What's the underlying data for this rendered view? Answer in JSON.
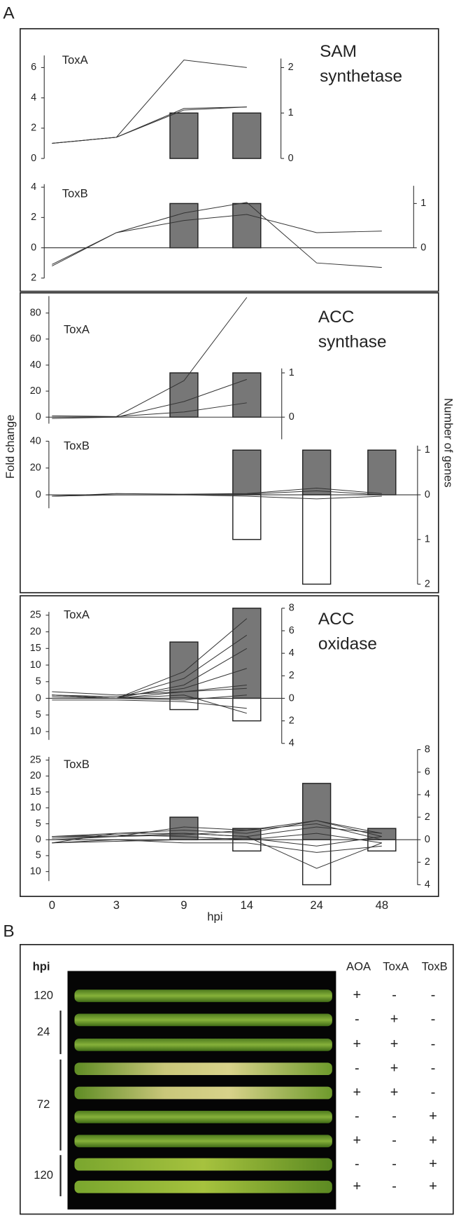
{
  "figure": {
    "panel_a": "A",
    "y_label": "Fold change",
    "y2_label": "Number of genes"
  },
  "chart_data": [
    {
      "type": "bar_line",
      "group": "SAM synthetase",
      "title": "ToxA",
      "zero_line": false,
      "ylim": [
        0,
        6.8
      ],
      "yticks": [
        0,
        2,
        4,
        6
      ],
      "y2lim": [
        0,
        2.2
      ],
      "y2ticks": [
        0,
        1,
        2
      ],
      "series": [
        {
          "type": "bar",
          "axis": "y2",
          "color": "#777777",
          "values": [
            null,
            null,
            1,
            1,
            null,
            null
          ]
        },
        {
          "type": "line",
          "color": "#333333",
          "values": [
            1.0,
            1.4,
            6.5,
            6.0,
            null,
            null
          ]
        },
        {
          "type": "line",
          "color": "#333333",
          "values": [
            1.0,
            1.4,
            3.3,
            3.4,
            null,
            null
          ]
        },
        {
          "type": "line",
          "color": "#333333",
          "values": [
            1.0,
            1.4,
            3.2,
            3.4,
            null,
            null
          ]
        }
      ]
    },
    {
      "type": "bar_line",
      "title": "ToxB",
      "zero_line": true,
      "ylim": [
        -2,
        4.2
      ],
      "yticks": [
        4,
        2,
        0,
        {
          "value": -2,
          "label": "2"
        }
      ],
      "y2lim": [
        0,
        1.4
      ],
      "y2ticks": [
        0,
        1
      ],
      "series": [
        {
          "type": "bar",
          "axis": "y2",
          "color": "#777777",
          "values": [
            null,
            null,
            1,
            1,
            null,
            null
          ]
        },
        {
          "type": "line",
          "color": "#333333",
          "values": [
            -1.1,
            1.0,
            2.3,
            3.0,
            -1.0,
            -1.3
          ]
        },
        {
          "type": "line",
          "color": "#333333",
          "values": [
            -1.2,
            1.0,
            1.8,
            2.2,
            1.0,
            1.1
          ]
        }
      ]
    },
    {
      "type": "bar_line",
      "group": "ACC synthase",
      "title": "ToxA",
      "zero_line": true,
      "ylim": [
        -5,
        93
      ],
      "yticks": [
        0,
        20,
        40,
        60,
        80
      ],
      "y2lim": [
        -0.5,
        1.1
      ],
      "y2ticks": [
        0,
        1
      ],
      "series": [
        {
          "type": "bar",
          "axis": "y2",
          "color": "#777777",
          "values": [
            null,
            null,
            1,
            1,
            null,
            null
          ]
        },
        {
          "type": "line",
          "color": "#333333",
          "values": [
            1,
            0.5,
            28,
            92,
            null,
            null
          ]
        },
        {
          "type": "line",
          "color": "#333333",
          "values": [
            -1,
            0,
            12,
            29,
            null,
            null
          ]
        },
        {
          "type": "line",
          "color": "#333333",
          "values": [
            0,
            0.5,
            4,
            11,
            null,
            null
          ]
        }
      ]
    },
    {
      "type": "bar_line",
      "title": "ToxB",
      "zero_line": true,
      "ylim": [
        -10,
        40
      ],
      "yticks": [
        40,
        20,
        0
      ],
      "y2lim": [
        -2,
        1.1
      ],
      "y2ticks": [
        1,
        0,
        {
          "value": -1,
          "label": "1"
        },
        {
          "value": -2,
          "label": "2"
        }
      ],
      "series": [
        {
          "type": "bar",
          "axis": "y2",
          "color": "#777777",
          "values": [
            null,
            null,
            null,
            1,
            1,
            1
          ]
        },
        {
          "type": "bar",
          "axis": "y2",
          "color": "#ffffff",
          "values": [
            null,
            null,
            null,
            -1,
            -2,
            null
          ]
        },
        {
          "type": "line",
          "color": "#333333",
          "values": [
            -1,
            1,
            0.5,
            1,
            5,
            1
          ]
        },
        {
          "type": "line",
          "color": "#333333",
          "values": [
            -1,
            0,
            0,
            0.5,
            3,
            0
          ]
        },
        {
          "type": "line",
          "color": "#333333",
          "values": [
            -1,
            0,
            0,
            -1,
            -3,
            -1
          ]
        }
      ]
    },
    {
      "type": "bar_line",
      "group": "ACC oxidase",
      "title": "ToxA",
      "zero_line": true,
      "ylim": [
        -12.5,
        26
      ],
      "yticks": [
        25,
        20,
        15,
        10,
        5,
        0,
        {
          "value": -5,
          "label": "5"
        },
        {
          "value": -10,
          "label": "10"
        }
      ],
      "y2lim": [
        -4,
        8
      ],
      "y2ticks": [
        8,
        6,
        4,
        2,
        0,
        {
          "value": -2,
          "label": "2"
        },
        {
          "value": -4,
          "label": "4"
        }
      ],
      "series": [
        {
          "type": "bar",
          "axis": "y2",
          "color": "#777777",
          "values": [
            null,
            null,
            5,
            8,
            null,
            null
          ]
        },
        {
          "type": "bar",
          "axis": "y2",
          "color": "#ffffff",
          "values": [
            null,
            null,
            -1,
            -2,
            null,
            null
          ]
        },
        {
          "type": "line",
          "color": "#333333",
          "values": [
            1,
            0,
            8,
            24,
            null,
            null
          ]
        },
        {
          "type": "line",
          "color": "#333333",
          "values": [
            1,
            0,
            6,
            19,
            null,
            null
          ]
        },
        {
          "type": "line",
          "color": "#333333",
          "values": [
            1,
            0,
            4,
            15,
            null,
            null
          ]
        },
        {
          "type": "line",
          "color": "#333333",
          "values": [
            1,
            0.5,
            3,
            9,
            null,
            null
          ]
        },
        {
          "type": "line",
          "color": "#333333",
          "values": [
            0.5,
            0,
            2,
            4,
            null,
            null
          ]
        },
        {
          "type": "line",
          "color": "#333333",
          "values": [
            2,
            1,
            2,
            3,
            null,
            null
          ]
        },
        {
          "type": "line",
          "color": "#333333",
          "values": [
            0,
            0,
            -0.5,
            1,
            null,
            null
          ]
        },
        {
          "type": "line",
          "color": "#333333",
          "values": [
            -0.5,
            -0.5,
            -1,
            -3,
            null,
            null
          ]
        },
        {
          "type": "line",
          "color": "#333333",
          "values": [
            0,
            0,
            1,
            -4.5,
            null,
            null
          ]
        }
      ]
    },
    {
      "type": "bar_line",
      "title": "ToxB",
      "zero_line": true,
      "x_label": "hpi",
      "categories": [
        "0",
        "3",
        "9",
        "14",
        "24",
        "48"
      ],
      "ylim": [
        -13,
        26
      ],
      "yticks": [
        25,
        20,
        15,
        10,
        5,
        0,
        {
          "value": -5,
          "label": "5"
        },
        {
          "value": -10,
          "label": "10"
        }
      ],
      "y2lim": [
        -4,
        8
      ],
      "y2ticks": [
        8,
        6,
        4,
        2,
        0,
        {
          "value": -2,
          "label": "2"
        },
        {
          "value": -4,
          "label": "4"
        }
      ],
      "series": [
        {
          "type": "bar",
          "axis": "y2",
          "color": "#777777",
          "values": [
            null,
            null,
            2,
            1,
            5,
            1
          ]
        },
        {
          "type": "bar",
          "axis": "y2",
          "color": "#ffffff",
          "values": [
            null,
            null,
            null,
            -1,
            -4,
            -1
          ]
        },
        {
          "type": "line",
          "color": "#333333",
          "values": [
            1,
            2,
            3,
            2,
            6,
            1
          ]
        },
        {
          "type": "line",
          "color": "#333333",
          "values": [
            0.5,
            1,
            4,
            3,
            5,
            0
          ]
        },
        {
          "type": "line",
          "color": "#333333",
          "values": [
            -1,
            2,
            2,
            1,
            4,
            2
          ]
        },
        {
          "type": "line",
          "color": "#333333",
          "values": [
            1,
            1.5,
            1,
            0,
            2,
            -1
          ]
        },
        {
          "type": "line",
          "color": "#333333",
          "values": [
            -1,
            0,
            -1,
            -1,
            -4,
            -2
          ]
        },
        {
          "type": "line",
          "color": "#333333",
          "values": [
            0,
            1,
            2,
            1,
            -9,
            -1
          ]
        },
        {
          "type": "line",
          "color": "#333333",
          "values": [
            -1,
            -0.5,
            0,
            0.5,
            -2,
            1
          ]
        },
        {
          "type": "line",
          "color": "#333333",
          "values": [
            1,
            1,
            1.5,
            3,
            6,
            2
          ]
        }
      ]
    }
  ],
  "panel_b": {
    "label": "B",
    "hpi_header": "hpi",
    "columns": [
      "AOA",
      "ToxA",
      "ToxB"
    ],
    "groups": [
      {
        "hpi": "120",
        "rows": [
          [
            "+",
            "-",
            "-"
          ]
        ]
      },
      {
        "hpi": "24",
        "rows": [
          [
            "-",
            "+",
            "-"
          ],
          [
            "+",
            "+",
            "-"
          ]
        ]
      },
      {
        "hpi": "72",
        "rows": [
          [
            "-",
            "+",
            "-"
          ],
          [
            "+",
            "+",
            "-"
          ],
          [
            "-",
            "-",
            "+"
          ],
          [
            "+",
            "-",
            "+"
          ]
        ]
      },
      {
        "hpi": "120",
        "rows": [
          [
            "-",
            "-",
            "+"
          ],
          [
            "+",
            "-",
            "+"
          ]
        ]
      }
    ]
  }
}
